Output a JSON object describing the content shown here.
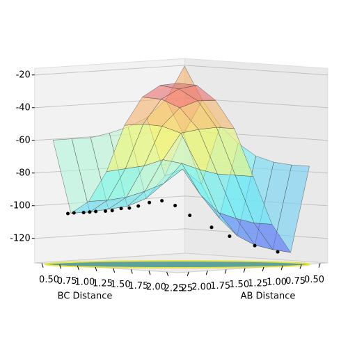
{
  "chart_data": {
    "type": "surface3d",
    "x_label": "AB Distance",
    "y_label": "BC Distance",
    "ab": [
      0.5,
      0.75,
      1.0,
      1.25,
      1.5,
      1.75,
      2.0,
      2.25
    ],
    "bc": [
      0.5,
      0.75,
      1.0,
      1.25,
      1.5,
      1.75,
      2.0,
      2.25
    ],
    "z": [
      [
        -20,
        -40,
        -55,
        -65,
        -72,
        -75,
        -76,
        -76
      ],
      [
        -40,
        -60,
        -90,
        -110,
        -120,
        -125,
        -127,
        -128
      ],
      [
        -50,
        -85,
        -80,
        -95,
        -105,
        -108,
        -110,
        -110
      ],
      [
        -55,
        -98,
        -88,
        -75,
        -78,
        -80,
        -80,
        -80
      ],
      [
        -58,
        -102,
        -92,
        -72,
        -55,
        -52,
        -50,
        -50
      ],
      [
        -60,
        -103,
        -95,
        -75,
        -50,
        -38,
        -33,
        -32
      ],
      [
        -60,
        -104,
        -96,
        -76,
        -48,
        -32,
        -25,
        -22
      ],
      [
        -60,
        -104,
        -96,
        -77,
        -48,
        -30,
        -22,
        -20
      ]
    ],
    "trajectory": {
      "color": "#000000",
      "ab": [
        2.3,
        2.2,
        2.1,
        2.0,
        1.9,
        1.8,
        1.7,
        1.6,
        1.5,
        1.4,
        1.3,
        1.2,
        1.1,
        1.0,
        0.9,
        0.85,
        0.8,
        0.78
      ],
      "bc": [
        0.76,
        0.74,
        0.77,
        0.75,
        0.73,
        0.76,
        0.75,
        0.77,
        0.78,
        0.8,
        0.85,
        0.92,
        1.0,
        1.1,
        1.3,
        1.5,
        1.8,
        2.1
      ],
      "z": [
        -104,
        -104,
        -104,
        -104,
        -104,
        -104,
        -104,
        -103,
        -103,
        -102,
        -100,
        -99,
        -102,
        -108,
        -115,
        -120,
        -125,
        -128
      ]
    },
    "xlim": [
      0.4,
      2.4
    ],
    "ylim": [
      0.4,
      2.4
    ],
    "zlim": [
      -135,
      -16
    ],
    "xticks": [
      2.25,
      {
        "value": 2.0,
        "label": "2.00"
      },
      1.75,
      {
        "value": 1.5,
        "label": "1.50"
      },
      1.25,
      {
        "value": 1.0,
        "label": "1.00"
      },
      0.75,
      {
        "value": 0.5,
        "label": "0.50"
      }
    ],
    "yticks": [
      {
        "value": 0.5,
        "label": "0.50"
      },
      0.75,
      {
        "value": 1.0,
        "label": "1.00"
      },
      1.25,
      {
        "value": 1.5,
        "label": "1.50"
      },
      1.75,
      {
        "value": 2.0,
        "label": "2.00"
      },
      2.25
    ],
    "zticks": [
      -20,
      -40,
      -60,
      -80,
      -100,
      -120
    ]
  }
}
